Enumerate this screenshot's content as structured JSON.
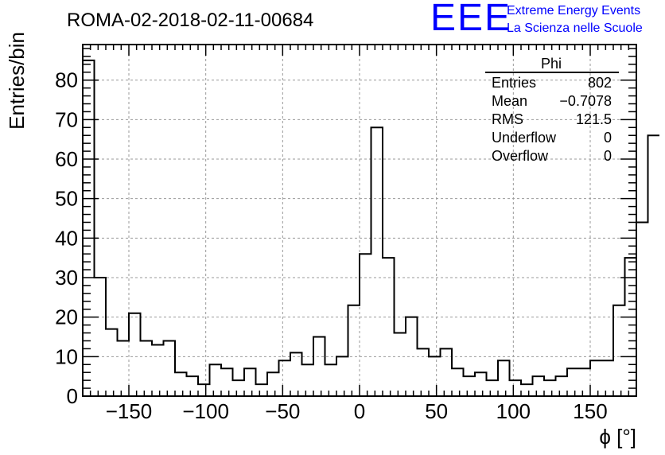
{
  "header": {
    "run_title": "ROMA-02-2018-02-11-00684",
    "logo_text": "EEE",
    "logo_line1": "Extreme Energy Events",
    "logo_line2": "La Scienza nelle Scuole",
    "logo_color": "#0000ff"
  },
  "stats_box": {
    "title": "Phi",
    "rows": [
      {
        "label": "Entries",
        "value": "802"
      },
      {
        "label": "Mean",
        "value": "−0.7078"
      },
      {
        "label": "RMS",
        "value": "121.5"
      },
      {
        "label": "Underflow",
        "value": "0"
      },
      {
        "label": "Overflow",
        "value": "0"
      }
    ]
  },
  "chart_data": {
    "type": "histogram",
    "title": "ROMA-02-2018-02-11-00684",
    "xlabel": "ϕ [°]",
    "ylabel": "Entries/bin",
    "xlim": [
      -180,
      180
    ],
    "ylim": [
      0,
      89
    ],
    "bin_width": 7.5,
    "bin_start": -180,
    "values": [
      85,
      30,
      17,
      14,
      21,
      14,
      13,
      14,
      6,
      5,
      3,
      8,
      7,
      4,
      7,
      3,
      6,
      9,
      11,
      8,
      15,
      8,
      10,
      23,
      36,
      68,
      35,
      16,
      20,
      12,
      10,
      12,
      7,
      5,
      6,
      4,
      9,
      4,
      3,
      5,
      4,
      5,
      7,
      7,
      9,
      9,
      23,
      35,
      44,
      66
    ],
    "x_ticks": [
      -150,
      -100,
      -50,
      0,
      50,
      100,
      150
    ],
    "x_tick_labels": [
      "−150",
      "−100",
      "−50",
      "0",
      "50",
      "100",
      "150"
    ],
    "y_ticks": [
      0,
      10,
      20,
      30,
      40,
      50,
      60,
      70,
      80
    ],
    "y_tick_labels": [
      "0",
      "10",
      "20",
      "30",
      "40",
      "50",
      "60",
      "70",
      "80"
    ],
    "grid": true,
    "line_color": "#000000"
  }
}
